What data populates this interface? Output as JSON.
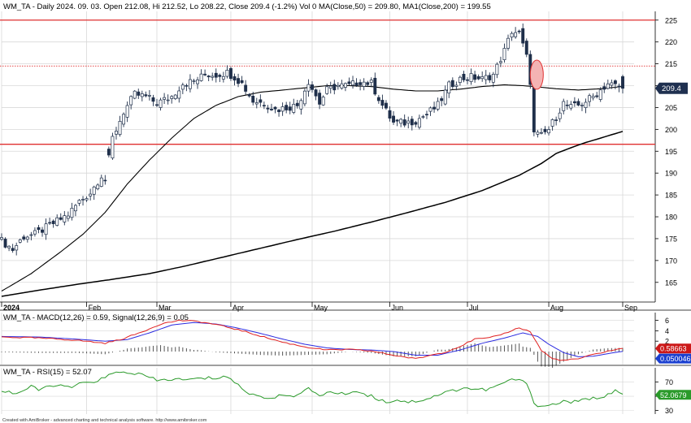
{
  "header": {
    "title": "WM_TA - Daily 2024. 09. 03. Open 212.08, Hi 212.52, Lo 208.22, Close 209.4 (-1.2%) Vol 0 MA(Close,50) = 209.80, MA1(Close,200) = 199.55"
  },
  "footer": {
    "credit": "Created with AmiBroker - advanced charting and technical analysis software. http://www.amibroker.com"
  },
  "colors": {
    "grid": "#d8d8d8",
    "up_body": "#ffffff",
    "down_body": "#1f2f4a",
    "wick": "#1f2f4a",
    "ma": "#000000",
    "red_line": "#e03030",
    "ellipse_fill": "#f4b3b3",
    "macd": "#e02020",
    "signal": "#2a2ae0",
    "hist": "#555555",
    "rsi": "#2a9a2a",
    "price_badge": "#1f3050",
    "macd_badge": "#cc1818",
    "signal_badge": "#1a3fd0",
    "rsi_badge": "#2a9a2a"
  },
  "chart_data": [
    {
      "type": "candlestick",
      "panel": "price",
      "ylim": [
        160.5,
        227
      ],
      "yticks": [
        225,
        220,
        215,
        210,
        205,
        200,
        195,
        190,
        185,
        180,
        175,
        170,
        165
      ],
      "x_labels": [
        "2024",
        "Feb",
        "Mar",
        "Apr",
        "May",
        "Jun",
        "Jul",
        "Aug",
        "Sep"
      ],
      "x_label_days": [
        0,
        23,
        42,
        62,
        84,
        105,
        126,
        148,
        168
      ],
      "last_price_label": "209.4",
      "ma50": [
        [
          0,
          163.0
        ],
        [
          8,
          167.0
        ],
        [
          16,
          172.0
        ],
        [
          22,
          176.0
        ],
        [
          28,
          181.0
        ],
        [
          34,
          187.5
        ],
        [
          40,
          193.0
        ],
        [
          46,
          198.0
        ],
        [
          52,
          202.5
        ],
        [
          58,
          205.5
        ],
        [
          64,
          207.5
        ],
        [
          70,
          208.5
        ],
        [
          76,
          209.0
        ],
        [
          82,
          209.5
        ],
        [
          88,
          210.0
        ],
        [
          94,
          210.0
        ],
        [
          100,
          209.8
        ],
        [
          106,
          209.2
        ],
        [
          112,
          208.8
        ],
        [
          118,
          208.8
        ],
        [
          124,
          209.2
        ],
        [
          130,
          209.8
        ],
        [
          136,
          210.2
        ],
        [
          141,
          210.0
        ],
        [
          144,
          209.8
        ],
        [
          150,
          209.3
        ],
        [
          156,
          209.0
        ],
        [
          162,
          209.3
        ],
        [
          168,
          209.8
        ]
      ],
      "ma200": [
        [
          0,
          161.8
        ],
        [
          10,
          163.2
        ],
        [
          20,
          164.5
        ],
        [
          30,
          165.7
        ],
        [
          40,
          167.0
        ],
        [
          50,
          168.8
        ],
        [
          60,
          170.8
        ],
        [
          70,
          172.8
        ],
        [
          80,
          174.8
        ],
        [
          90,
          176.7
        ],
        [
          100,
          178.8
        ],
        [
          110,
          181.0
        ],
        [
          120,
          183.3
        ],
        [
          130,
          186.0
        ],
        [
          140,
          189.5
        ],
        [
          146,
          192.2
        ],
        [
          150,
          194.5
        ],
        [
          154,
          195.8
        ],
        [
          158,
          197.0
        ],
        [
          162,
          198.0
        ],
        [
          168,
          199.55
        ]
      ],
      "horizontal_lines": [
        225.0,
        214.5,
        196.6
      ],
      "ellipse_center": [
        143,
        212.5
      ],
      "anchors": [
        [
          0,
          174.5
        ],
        [
          3,
          172.5
        ],
        [
          6,
          175.5
        ],
        [
          9,
          176.0
        ],
        [
          12,
          177.5
        ],
        [
          15,
          179.0
        ],
        [
          18,
          180.5
        ],
        [
          21,
          183.5
        ],
        [
          24,
          185.5
        ],
        [
          27,
          189.5
        ],
        [
          28,
          188.5
        ],
        [
          30,
          198.0
        ],
        [
          33,
          204.0
        ],
        [
          36,
          208.0
        ],
        [
          39,
          207.5
        ],
        [
          42,
          206.0
        ],
        [
          46,
          207.5
        ],
        [
          49,
          210.5
        ],
        [
          52,
          211.0
        ],
        [
          55,
          212.5
        ],
        [
          58,
          212.5
        ],
        [
          61,
          213.0
        ],
        [
          63,
          212.0
        ],
        [
          65,
          210.5
        ],
        [
          68,
          206.5
        ],
        [
          71,
          206.0
        ],
        [
          74,
          204.5
        ],
        [
          77,
          205.0
        ],
        [
          80,
          205.5
        ],
        [
          83,
          211.0
        ],
        [
          86,
          206.0
        ],
        [
          88,
          209.0
        ],
        [
          91,
          210.0
        ],
        [
          94,
          210.0
        ],
        [
          97,
          211.0
        ],
        [
          100,
          210.5
        ],
        [
          103,
          205.5
        ],
        [
          106,
          201.5
        ],
        [
          109,
          201.5
        ],
        [
          112,
          202.0
        ],
        [
          115,
          203.5
        ],
        [
          118,
          205.5
        ],
        [
          121,
          210.0
        ],
        [
          124,
          211.5
        ],
        [
          127,
          212.0
        ],
        [
          130,
          211.5
        ],
        [
          133,
          212.5
        ],
        [
          136,
          218.0
        ],
        [
          138,
          222.5
        ],
        [
          140,
          222.0
        ],
        [
          142,
          216.5
        ],
        [
          143,
          211.0
        ],
        [
          144,
          199.0
        ],
        [
          146,
          198.5
        ],
        [
          148,
          200.0
        ],
        [
          150,
          203.0
        ],
        [
          152,
          206.0
        ],
        [
          154,
          205.0
        ],
        [
          156,
          205.5
        ],
        [
          158,
          206.5
        ],
        [
          160,
          207.5
        ],
        [
          162,
          209.0
        ],
        [
          164,
          210.5
        ],
        [
          166,
          210.0
        ],
        [
          168,
          209.4
        ]
      ],
      "gap_after_day": 28
    },
    {
      "type": "line",
      "panel": "macd",
      "title": "WM_TA - MACD(12,26) = 0.59, Signal(12,26,9) = 0.05",
      "ylim": [
        -2.5,
        7.5
      ],
      "yticks": [
        6,
        4,
        2
      ],
      "macd_label": "0.58663",
      "signal_label": "0.050046",
      "macd_anchors": [
        [
          0,
          2.8
        ],
        [
          10,
          2.6
        ],
        [
          20,
          2.2
        ],
        [
          28,
          1.6
        ],
        [
          33,
          2.5
        ],
        [
          38,
          3.8
        ],
        [
          43,
          5.3
        ],
        [
          48,
          6.0
        ],
        [
          53,
          5.8
        ],
        [
          58,
          5.2
        ],
        [
          64,
          4.2
        ],
        [
          70,
          3.0
        ],
        [
          76,
          1.8
        ],
        [
          82,
          0.9
        ],
        [
          88,
          0.3
        ],
        [
          94,
          0.4
        ],
        [
          100,
          0.1
        ],
        [
          106,
          -0.7
        ],
        [
          112,
          -1.4
        ],
        [
          116,
          -0.7
        ],
        [
          120,
          -0.1
        ],
        [
          124,
          1.0
        ],
        [
          128,
          2.4
        ],
        [
          132,
          2.6
        ],
        [
          136,
          3.5
        ],
        [
          140,
          4.6
        ],
        [
          143,
          3.8
        ],
        [
          146,
          0.2
        ],
        [
          149,
          -1.4
        ],
        [
          152,
          -1.7
        ],
        [
          156,
          -1.4
        ],
        [
          160,
          -0.6
        ],
        [
          164,
          0.1
        ],
        [
          168,
          0.59
        ]
      ],
      "signal_anchors": [
        [
          0,
          2.9
        ],
        [
          10,
          2.8
        ],
        [
          20,
          2.4
        ],
        [
          28,
          2.0
        ],
        [
          34,
          2.3
        ],
        [
          40,
          3.6
        ],
        [
          46,
          5.1
        ],
        [
          52,
          5.6
        ],
        [
          58,
          5.3
        ],
        [
          64,
          4.5
        ],
        [
          70,
          3.5
        ],
        [
          76,
          2.4
        ],
        [
          82,
          1.4
        ],
        [
          88,
          0.7
        ],
        [
          94,
          0.4
        ],
        [
          100,
          0.3
        ],
        [
          106,
          0.0
        ],
        [
          112,
          -0.7
        ],
        [
          118,
          -0.7
        ],
        [
          124,
          0.3
        ],
        [
          130,
          1.6
        ],
        [
          136,
          2.6
        ],
        [
          141,
          3.6
        ],
        [
          145,
          2.9
        ],
        [
          148,
          1.4
        ],
        [
          152,
          -0.2
        ],
        [
          156,
          -1.0
        ],
        [
          160,
          -0.9
        ],
        [
          164,
          -0.4
        ],
        [
          168,
          0.05
        ]
      ]
    },
    {
      "type": "line",
      "panel": "rsi",
      "title": "WM_TA - RSI(15) = 52.07",
      "ylim": [
        25,
        90
      ],
      "yticks": [
        70,
        50,
        30
      ],
      "rsi_label": "52.0679",
      "anchors": [
        [
          0,
          58
        ],
        [
          4,
          54
        ],
        [
          8,
          63
        ],
        [
          10,
          59
        ],
        [
          14,
          66
        ],
        [
          18,
          62
        ],
        [
          22,
          68
        ],
        [
          25,
          71
        ],
        [
          28,
          76
        ],
        [
          30,
          82
        ],
        [
          34,
          84
        ],
        [
          38,
          80
        ],
        [
          42,
          72
        ],
        [
          46,
          74
        ],
        [
          50,
          73
        ],
        [
          54,
          75
        ],
        [
          58,
          76
        ],
        [
          61,
          78
        ],
        [
          63,
          70
        ],
        [
          65,
          60
        ],
        [
          68,
          52
        ],
        [
          71,
          49
        ],
        [
          74,
          48
        ],
        [
          77,
          53
        ],
        [
          80,
          51
        ],
        [
          83,
          60
        ],
        [
          86,
          52
        ],
        [
          89,
          56
        ],
        [
          92,
          53
        ],
        [
          95,
          57
        ],
        [
          98,
          54
        ],
        [
          101,
          48
        ],
        [
          104,
          42
        ],
        [
          107,
          45
        ],
        [
          110,
          42
        ],
        [
          113,
          44
        ],
        [
          116,
          48
        ],
        [
          119,
          54
        ],
        [
          122,
          58
        ],
        [
          125,
          62
        ],
        [
          128,
          60
        ],
        [
          131,
          59
        ],
        [
          134,
          64
        ],
        [
          137,
          72
        ],
        [
          140,
          74
        ],
        [
          142,
          66
        ],
        [
          143,
          58
        ],
        [
          144,
          40
        ],
        [
          146,
          36
        ],
        [
          149,
          38
        ],
        [
          152,
          43
        ],
        [
          155,
          42
        ],
        [
          158,
          45
        ],
        [
          161,
          48
        ],
        [
          163,
          51
        ],
        [
          165,
          55
        ],
        [
          166,
          57
        ],
        [
          168,
          52.07
        ]
      ]
    }
  ]
}
